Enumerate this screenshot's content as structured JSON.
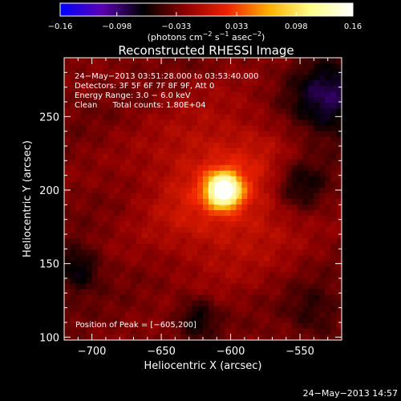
{
  "chart_data": {
    "type": "heatmap",
    "title": "Reconstructed RHESSI Image",
    "xlabel": "Heliocentric X (arcsec)",
    "ylabel": "Heliocentric Y (arcsec)",
    "xlim": [
      -720,
      -520
    ],
    "ylim": [
      98,
      290
    ],
    "x_ticks": [
      -700,
      -650,
      -600,
      -550
    ],
    "x_tick_labels": [
      "−700",
      "−650",
      "−600",
      "−550"
    ],
    "y_ticks": [
      100,
      150,
      200,
      250
    ],
    "y_tick_labels": [
      "100",
      "150",
      "200",
      "250"
    ],
    "colorbar": {
      "min": -0.16,
      "max": 0.16,
      "ticks": [
        -0.16,
        -0.098,
        -0.033,
        0.033,
        0.098,
        0.16
      ],
      "tick_labels": [
        "−0.16",
        "−0.098",
        "−0.033",
        "0.033",
        "0.098",
        "0.16"
      ],
      "unit_label_parts": [
        "(photons cm",
        "−2",
        " s",
        "−1",
        " asec",
        "−2",
        ")"
      ]
    },
    "colormap_stops": [
      "#0000ff",
      "#5b00b4",
      "#000000",
      "#8f0000",
      "#ee2200",
      "#ffb000",
      "#ffff8a",
      "#ffffff"
    ],
    "peak": [
      -605,
      200
    ],
    "info_lines": [
      "24−May−2013 03:51:28.000 to 03:53:40.000",
      "Detectors: 3F 5F 6F 7F 8F 9F, Att 0",
      "Energy Range: 3.0 − 6.0 keV",
      "Clean      Total counts: 1.80E+04"
    ],
    "peak_label": "Position of Peak = [−605,200]",
    "grid": false
  },
  "footer_timestamp": "24−May−2013 14:57"
}
